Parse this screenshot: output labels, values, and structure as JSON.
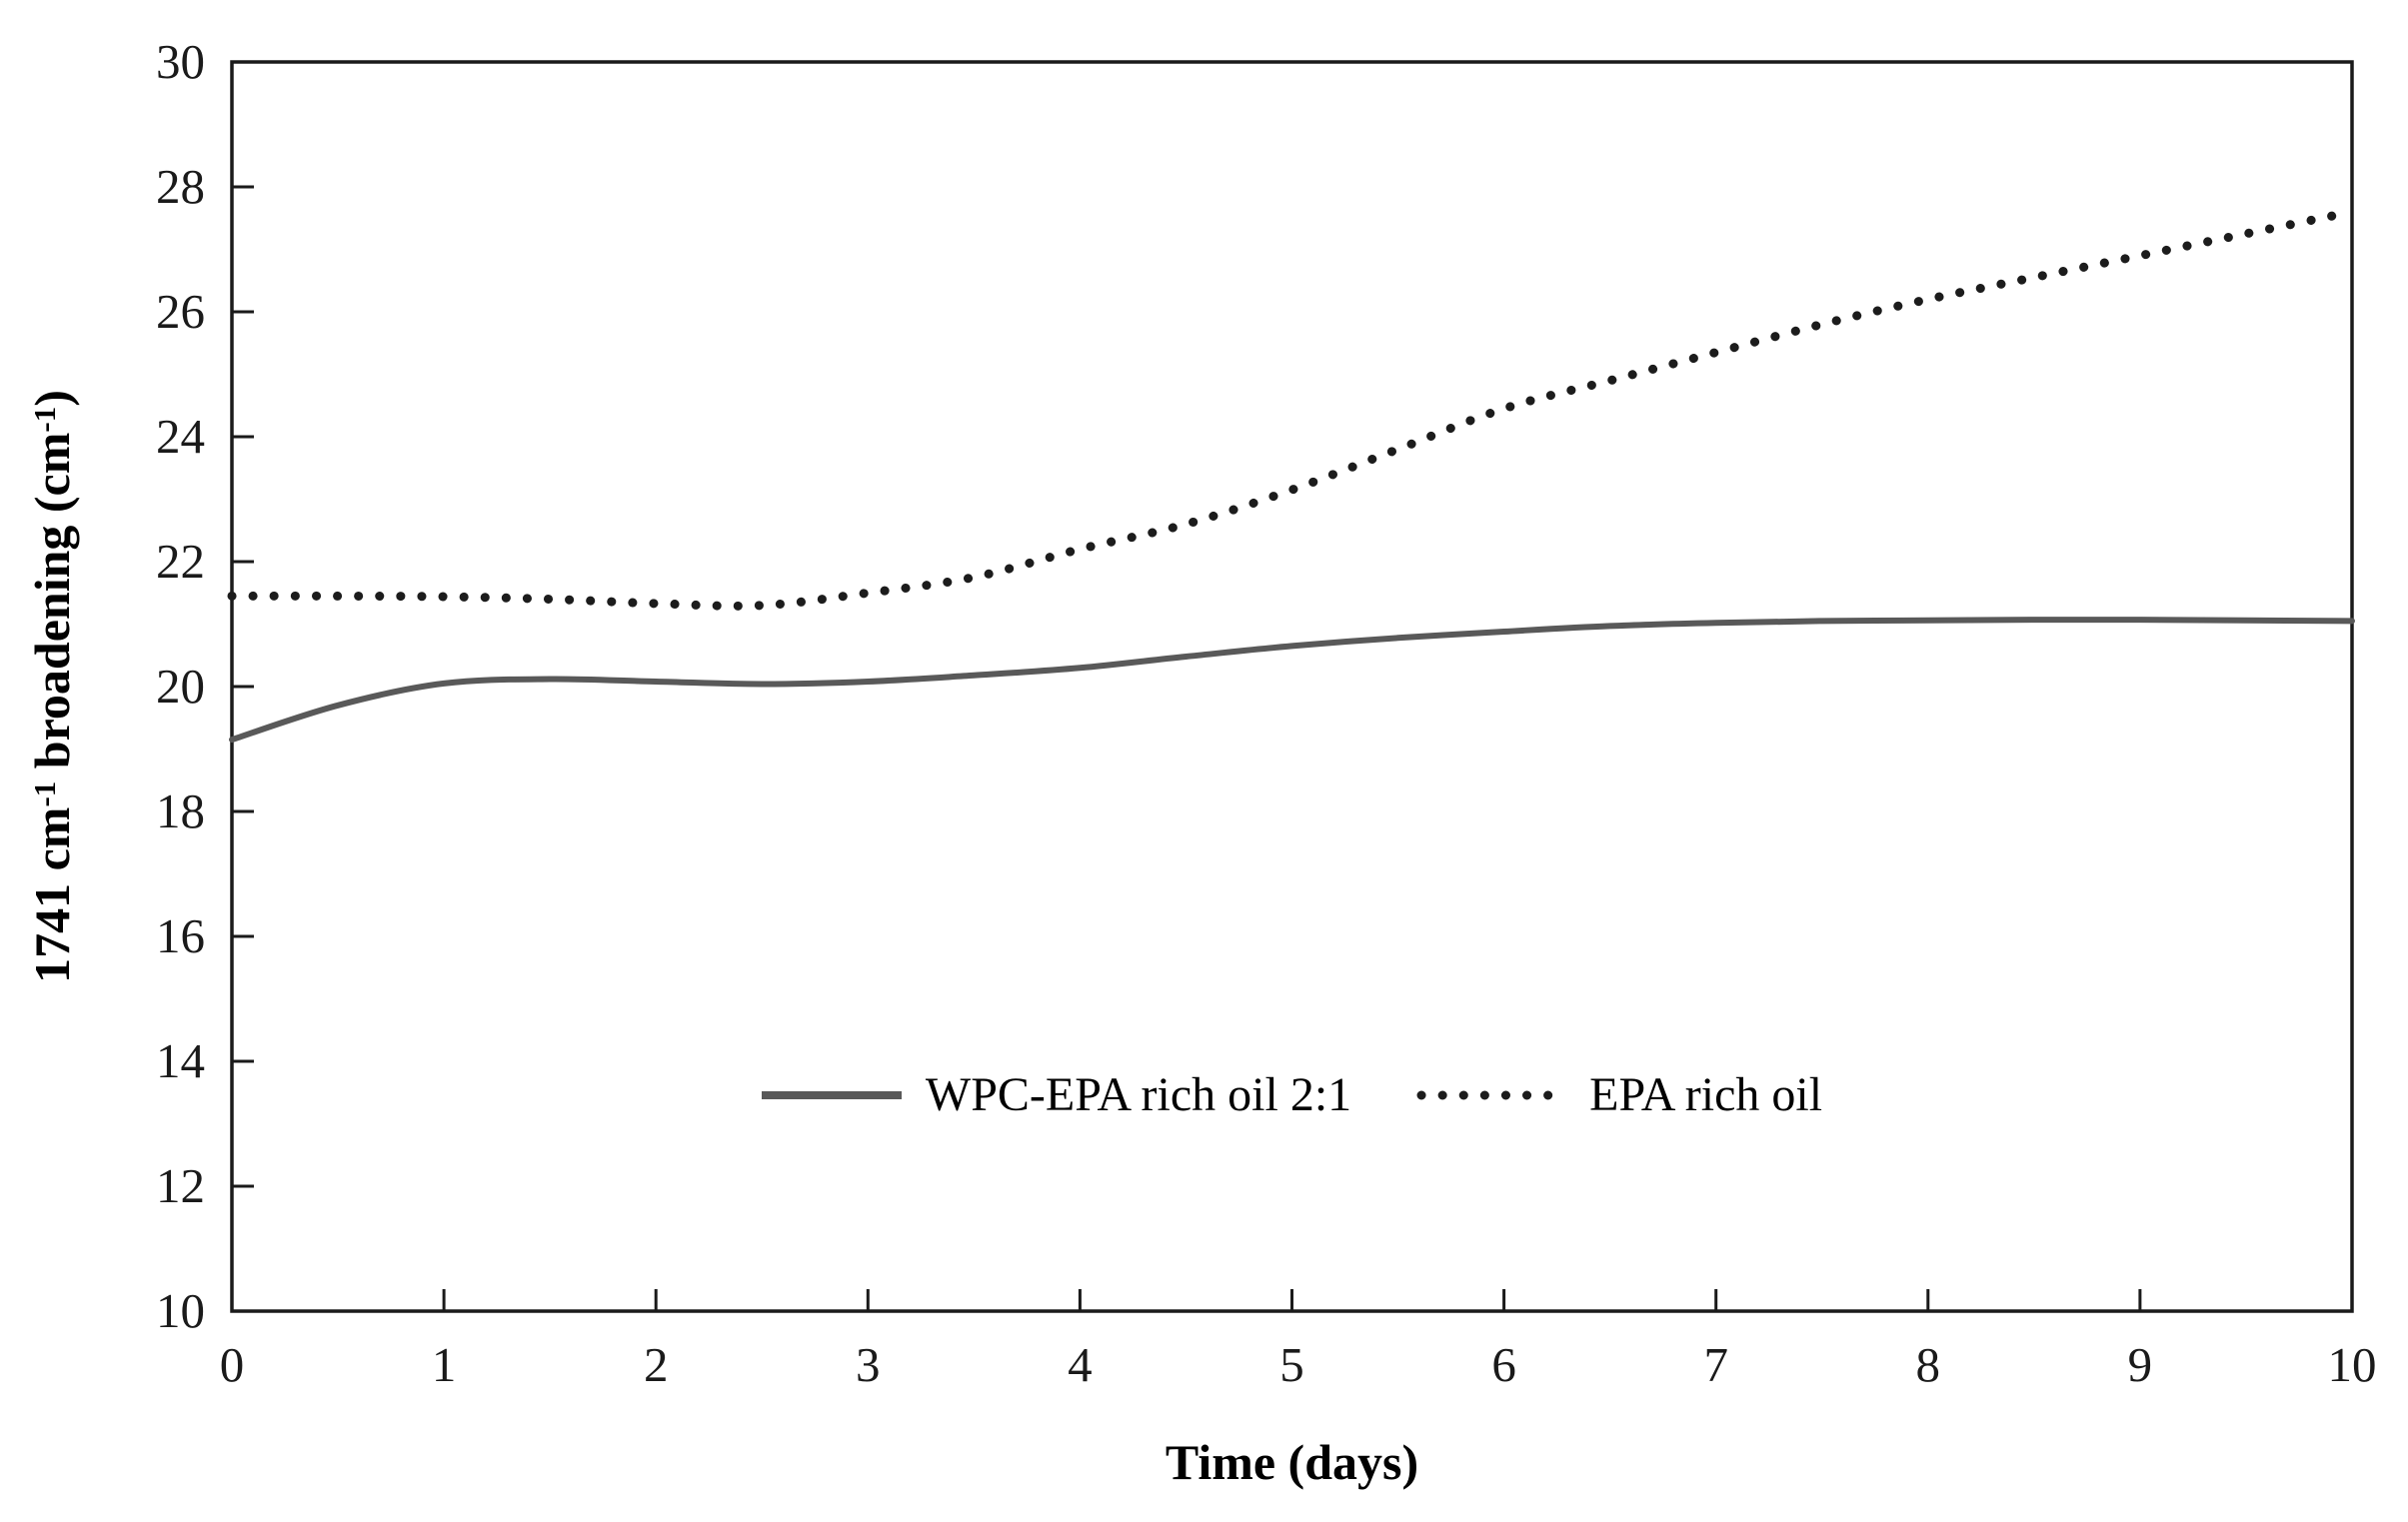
{
  "figure": {
    "background": "#ffffff",
    "axis_color": "#1a1a1a",
    "tick_color": "#1a1a1a",
    "text_color": "#000000"
  },
  "chart_data": {
    "type": "line",
    "title": "",
    "xlabel": "Time (days)",
    "ylabel_parts": [
      "1741 cm",
      "-1",
      " broadening (cm",
      "-1",
      ")"
    ],
    "ylabel_text": "1741 cm^-1 broadening (cm^-1)",
    "xlim": [
      0,
      10
    ],
    "ylim": [
      10,
      30
    ],
    "x_ticks": [
      0,
      1,
      2,
      3,
      4,
      5,
      6,
      7,
      8,
      9,
      10
    ],
    "y_ticks": [
      10,
      12,
      14,
      16,
      18,
      20,
      22,
      24,
      26,
      28,
      30
    ],
    "grid": false,
    "legend_position": "inside-bottom-center",
    "x": [
      0,
      0.5,
      1,
      1.5,
      2,
      2.5,
      3,
      3.5,
      4,
      4.5,
      5,
      5.5,
      6,
      6.5,
      7,
      7.5,
      8,
      8.5,
      9,
      9.5,
      10
    ],
    "series": [
      {
        "name": "WPC-EPA rich oil 2:1",
        "style": "solid",
        "color": "#595959",
        "stroke_width": 6,
        "values": [
          19.15,
          19.7,
          20.05,
          20.12,
          20.08,
          20.04,
          20.08,
          20.18,
          20.3,
          20.48,
          20.65,
          20.78,
          20.88,
          20.97,
          21.02,
          21.05,
          21.06,
          21.07,
          21.07,
          21.06,
          21.05
        ]
      },
      {
        "name": "EPA rich oil",
        "style": "dotted",
        "color": "#1c1c1c",
        "stroke_width": 9,
        "values": [
          21.45,
          21.45,
          21.44,
          21.4,
          21.33,
          21.3,
          21.5,
          21.75,
          22.2,
          22.6,
          23.15,
          23.8,
          24.45,
          24.9,
          25.35,
          25.8,
          26.2,
          26.55,
          26.9,
          27.25,
          27.6
        ]
      }
    ]
  }
}
